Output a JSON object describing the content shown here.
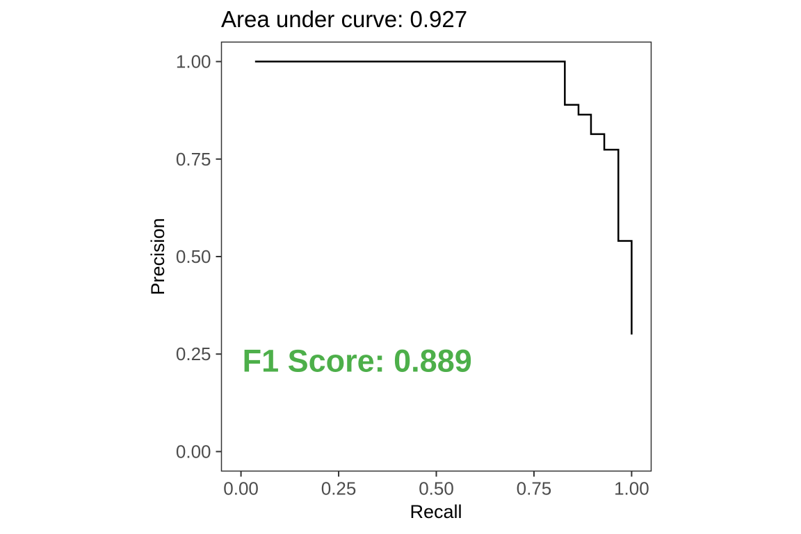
{
  "chart_data": {
    "type": "line",
    "title": "Area under curve: 0.927",
    "xlabel": "Recall",
    "ylabel": "Precision",
    "xlim": [
      -0.05,
      1.05
    ],
    "ylim": [
      -0.05,
      1.05
    ],
    "x_ticks": [
      0,
      0.25,
      0.5,
      0.75,
      1
    ],
    "x_tick_labels": [
      "0.00",
      "0.25",
      "0.50",
      "0.75",
      "1.00"
    ],
    "y_ticks": [
      0,
      0.25,
      0.5,
      0.75,
      1
    ],
    "y_tick_labels": [
      "0.00",
      "0.25",
      "0.50",
      "0.75",
      "1.00"
    ],
    "grid": false,
    "series": [
      {
        "color": "#000000",
        "step": "hv",
        "points": [
          [
            0.036,
            1.0
          ],
          [
            0.829,
            1.0
          ],
          [
            0.829,
            0.889
          ],
          [
            0.864,
            0.889
          ],
          [
            0.864,
            0.864
          ],
          [
            0.896,
            0.864
          ],
          [
            0.896,
            0.814
          ],
          [
            0.93,
            0.814
          ],
          [
            0.93,
            0.774
          ],
          [
            0.966,
            0.774
          ],
          [
            0.966,
            0.54
          ],
          [
            1.0,
            0.54
          ],
          [
            1.0,
            0.3
          ]
        ]
      }
    ],
    "annotations": [
      {
        "text": "F1 Score: 0.889",
        "x": 0.0,
        "y": 0.2,
        "color": "#4daf4a"
      }
    ]
  }
}
